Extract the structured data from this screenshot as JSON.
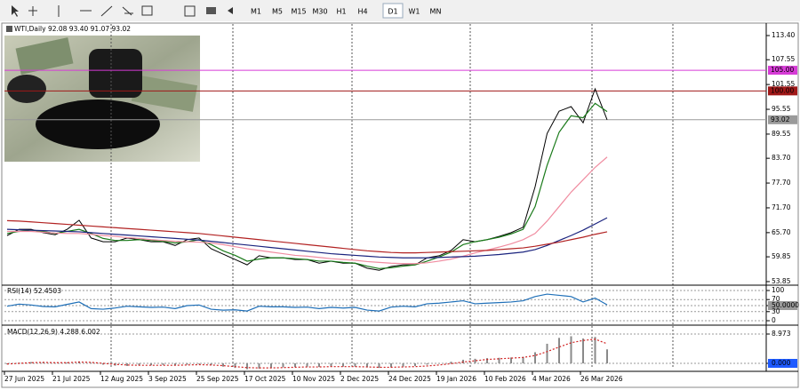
{
  "toolbar": {
    "timeframes": [
      "M1",
      "M5",
      "M15",
      "M30",
      "H1",
      "H4",
      "D1",
      "W1",
      "MN"
    ],
    "active": 6
  },
  "chart_data": [
    {
      "type": "line",
      "title": "WTI,Daily  92.08 93.40 91.07 93.02",
      "categories": [
        "27 Jun 2025",
        null,
        null,
        null,
        "21 Jul 2025",
        null,
        null,
        null,
        "12 Aug 2025",
        null,
        null,
        null,
        "3 Sep 2025",
        null,
        null,
        null,
        "25 Sep 2025",
        null,
        null,
        null,
        "17 Oct 2025",
        null,
        null,
        null,
        "10 Nov 2025",
        null,
        null,
        null,
        "2 Dec 2025",
        null,
        null,
        null,
        "24 Dec 2025",
        null,
        null,
        null,
        "19 Jan 2026",
        null,
        null,
        null,
        "10 Feb 2026",
        null,
        null,
        null,
        "4 Mar 2026",
        null,
        null,
        null,
        "26 Mar 2026",
        null,
        null
      ],
      "ylim": [
        53.2,
        116.2
      ],
      "yticks": [
        {
          "value": 113.4,
          "label": "113.40"
        },
        107.55,
        101.55,
        95.55,
        89.55,
        {
          "value": 83.7,
          "label": "83.70"
        },
        {
          "value": 77.7,
          "label": "77.70"
        },
        {
          "value": 71.7,
          "label": "71.70"
        },
        {
          "value": 65.7,
          "label": "65.70"
        },
        59.85,
        53.85
      ],
      "hlines": [
        {
          "value": 105,
          "label": "105.00",
          "color": "#d63bd6"
        },
        {
          "value": 100,
          "label": "100.00",
          "color": "#a01818"
        },
        {
          "value": 93.02,
          "label": "93.02",
          "color": "#9a9a9a"
        }
      ],
      "series": [
        {
          "color": "#000000",
          "values": [
            65.0,
            66.5,
            66.5,
            65.7,
            65.2,
            66.5,
            68.7,
            64.4,
            63.5,
            63.5,
            64.4,
            64.0,
            63.5,
            63.5,
            62.6,
            64.0,
            64.4,
            61.8,
            60.5,
            59.2,
            57.9,
            60.1,
            59.6,
            59.6,
            59.2,
            59.2,
            58.3,
            58.8,
            58.3,
            58.3,
            57.1,
            56.6,
            57.5,
            57.9,
            57.9,
            59.6,
            60.1,
            61.4,
            64.0,
            63.5,
            64.0,
            64.8,
            65.7,
            67.0,
            76.8,
            89.7,
            95.1,
            96.2,
            92.3,
            100.5,
            93.02
          ]
        },
        {
          "color": "#1a7a1a",
          "values": [
            65.5,
            66,
            66.3,
            66,
            65.5,
            66,
            66.5,
            65.5,
            64.3,
            63.8,
            63.8,
            64,
            63.8,
            63.6,
            63.2,
            63.5,
            64,
            62.8,
            61.3,
            60.2,
            58.8,
            59.3,
            59.6,
            59.6,
            59.4,
            59.2,
            58.8,
            58.8,
            58.5,
            58.3,
            57.6,
            57,
            57.2,
            57.6,
            57.9,
            58.8,
            59.8,
            61,
            62.8,
            63.5,
            64,
            64.6,
            65.4,
            66.5,
            72,
            82,
            90,
            94,
            93.5,
            97,
            95
          ]
        },
        {
          "color": "#f08ca0",
          "values": [
            66,
            66,
            66,
            65.8,
            65.6,
            65.5,
            65.5,
            65.3,
            65,
            64.8,
            64.5,
            64.3,
            64,
            63.8,
            63.6,
            63.5,
            63.4,
            63.2,
            62.8,
            62.3,
            61.8,
            61.4,
            61,
            60.6,
            60.2,
            60,
            59.7,
            59.4,
            59.2,
            59,
            58.7,
            58.5,
            58.3,
            58.2,
            58.2,
            58.4,
            58.8,
            59.3,
            60,
            60.8,
            61.5,
            62.2,
            63,
            64,
            65.5,
            68.5,
            72,
            75.5,
            78.5,
            81.5,
            84
          ]
        },
        {
          "color": "#1a237e",
          "values": [
            66.5,
            66.4,
            66.3,
            66.2,
            66.1,
            66,
            65.9,
            65.7,
            65.5,
            65.3,
            65.1,
            64.9,
            64.7,
            64.5,
            64.3,
            64.1,
            63.9,
            63.6,
            63.3,
            63,
            62.7,
            62.4,
            62.1,
            61.8,
            61.5,
            61.2,
            60.9,
            60.6,
            60.4,
            60.2,
            60,
            59.8,
            59.7,
            59.6,
            59.6,
            59.6,
            59.7,
            59.8,
            59.9,
            60,
            60.2,
            60.4,
            60.7,
            61,
            61.6,
            62.6,
            63.8,
            65,
            66.3,
            67.8,
            69.3
          ]
        },
        {
          "color": "#b22222",
          "values": [
            68.6,
            68.5,
            68.3,
            68.1,
            67.9,
            67.7,
            67.5,
            67.3,
            67.1,
            66.9,
            66.7,
            66.5,
            66.3,
            66.1,
            65.9,
            65.7,
            65.5,
            65.2,
            64.9,
            64.6,
            64.3,
            64,
            63.7,
            63.4,
            63.1,
            62.8,
            62.5,
            62.2,
            61.9,
            61.6,
            61.3,
            61.1,
            60.9,
            60.8,
            60.8,
            60.9,
            61,
            61.1,
            61.2,
            61.3,
            61.4,
            61.6,
            61.8,
            62,
            62.4,
            62.9,
            63.4,
            64,
            64.6,
            65.3,
            65.9
          ]
        }
      ]
    },
    {
      "type": "line",
      "title": "RSI(14) 52.4503",
      "ylim": [
        -11.8,
        114.7
      ],
      "yticks": [
        100,
        70,
        {
          "value": 50,
          "label": "50.0000"
        },
        30,
        0
      ],
      "series": [
        {
          "color": "#1e6fb8",
          "values": [
            48,
            55,
            52,
            47,
            46,
            54,
            62,
            40,
            38,
            42,
            48,
            46,
            44,
            45,
            40,
            50,
            52,
            38,
            35,
            36,
            32,
            48,
            46,
            46,
            44,
            45,
            40,
            44,
            42,
            44,
            35,
            32,
            45,
            48,
            46,
            56,
            58,
            62,
            66,
            56,
            58,
            60,
            62,
            66,
            80,
            88,
            84,
            80,
            62,
            75,
            52.4503
          ]
        }
      ]
    },
    {
      "type": "bar",
      "title": "MACD(12,26,9) 4.288 6.002",
      "ylim": [
        -1.63,
        11.15
      ],
      "yticks": [
        8.973,
        {
          "value": 0,
          "label": "0.000"
        }
      ],
      "series": [
        {
          "type": "bar",
          "color": "#8a8a8a",
          "values": [
            -0.3,
            0.2,
            0.4,
            0.3,
            0.1,
            0.3,
            0.6,
            0.2,
            -0.4,
            -0.7,
            -0.8,
            -0.6,
            -0.6,
            -0.5,
            -0.6,
            -0.4,
            -0.2,
            -0.5,
            -1.0,
            -1.4,
            -1.8,
            -1.6,
            -1.4,
            -1.2,
            -1.1,
            -1.0,
            -1.1,
            -1.0,
            -1.0,
            -1.0,
            -1.2,
            -1.4,
            -1.2,
            -1.0,
            -0.8,
            -0.4,
            0,
            0.5,
            1.1,
            1.4,
            1.6,
            1.7,
            1.8,
            2.0,
            3.4,
            6.0,
            7.8,
            8.3,
            7.6,
            8.1,
            4.288
          ]
        },
        {
          "type": "line",
          "color": "#d02020",
          "values": [
            -0.2,
            0,
            0.2,
            0.3,
            0.2,
            0.2,
            0.4,
            0.3,
            0,
            -0.3,
            -0.5,
            -0.6,
            -0.6,
            -0.6,
            -0.6,
            -0.5,
            -0.4,
            -0.5,
            -0.7,
            -1.0,
            -1.3,
            -1.4,
            -1.4,
            -1.3,
            -1.2,
            -1.1,
            -1.1,
            -1.0,
            -1.0,
            -1.0,
            -1.1,
            -1.2,
            -1.2,
            -1.1,
            -1.0,
            -0.8,
            -0.5,
            -0.1,
            0.4,
            0.8,
            1.2,
            1.4,
            1.6,
            1.8,
            2.4,
            3.6,
            5.0,
            6.3,
            7.0,
            7.4,
            6.002
          ]
        }
      ]
    }
  ]
}
